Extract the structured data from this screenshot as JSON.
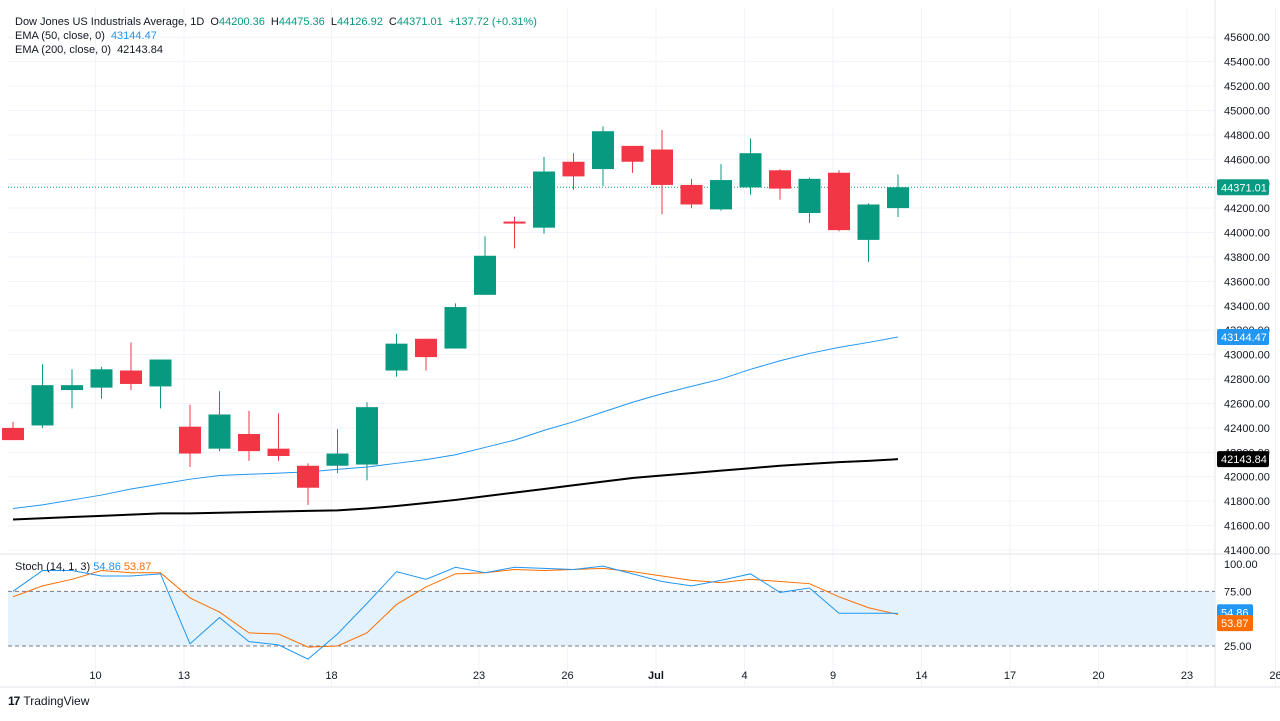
{
  "header": {
    "symbol_title": "Dow Jones US Industrials Average, 1D",
    "open_label": "O",
    "open_value": "44200.36",
    "high_label": "H",
    "high_value": "44475.36",
    "low_label": "L",
    "low_value": "44126.92",
    "close_label": "C",
    "close_value": "44371.01",
    "change_value": "+137.72 (+0.31%)"
  },
  "indicators": {
    "ema50_label": "EMA (50, close, 0)",
    "ema50_value": "43144.47",
    "ema200_label": "EMA (200, close, 0)",
    "ema200_value": "42143.84"
  },
  "stoch": {
    "label": "Stoch (14, 1, 3)",
    "k_value": "54.86",
    "d_value": "53.87",
    "levels": [
      "100.00",
      "75.00",
      "25.00"
    ]
  },
  "footer": {
    "brand": "TradingView",
    "logo": "17"
  },
  "colors": {
    "up": "#089981",
    "down": "#f23645",
    "ema50": "#2196f3",
    "ema200": "#000000",
    "stoch_k": "#2196f3",
    "stoch_d": "#ff6d00",
    "band": "#e3f2fd"
  },
  "chart_data": {
    "type": "candlestick",
    "title": "Dow Jones US Industrials Average, 1D",
    "ylim": [
      41400,
      45700
    ],
    "price_ticks": [
      "45600.00",
      "45400.00",
      "45200.00",
      "45000.00",
      "44800.00",
      "44600.00",
      "44400.00",
      "44200.00",
      "44000.00",
      "43800.00",
      "43600.00",
      "43400.00",
      "43200.00",
      "43000.00",
      "42800.00",
      "42600.00",
      "42400.00",
      "42200.00",
      "42000.00",
      "41800.00",
      "41600.00",
      "41400.00"
    ],
    "x_ticks": [
      {
        "label": "10",
        "day": 10
      },
      {
        "label": "13",
        "day": 13
      },
      {
        "label": "18",
        "day": 18
      },
      {
        "label": "23",
        "day": 23
      },
      {
        "label": "26",
        "day": 26
      },
      {
        "label": "Jul",
        "day": 29
      },
      {
        "label": "4",
        "day": 32
      },
      {
        "label": "9",
        "day": 35
      },
      {
        "label": "14",
        "day": 38
      },
      {
        "label": "17",
        "day": 41
      },
      {
        "label": "20",
        "day": 44
      },
      {
        "label": "23",
        "day": 47
      },
      {
        "label": "26",
        "day": 50
      }
    ],
    "candles": [
      {
        "o": 42400,
        "h": 42450,
        "l": 42300,
        "c": 42300
      },
      {
        "o": 42420,
        "h": 42920,
        "l": 42400,
        "c": 42750
      },
      {
        "o": 42710,
        "h": 42880,
        "l": 42560,
        "c": 42750
      },
      {
        "o": 42730,
        "h": 42900,
        "l": 42640,
        "c": 42880
      },
      {
        "o": 42870,
        "h": 43100,
        "l": 42710,
        "c": 42760
      },
      {
        "o": 42740,
        "h": 42960,
        "l": 42560,
        "c": 42960
      },
      {
        "o": 42410,
        "h": 42590,
        "l": 42080,
        "c": 42190
      },
      {
        "o": 42230,
        "h": 42700,
        "l": 42210,
        "c": 42510
      },
      {
        "o": 42350,
        "h": 42540,
        "l": 42130,
        "c": 42210
      },
      {
        "o": 42230,
        "h": 42520,
        "l": 42130,
        "c": 42170
      },
      {
        "o": 42090,
        "h": 42110,
        "l": 41770,
        "c": 41910
      },
      {
        "o": 42090,
        "h": 42390,
        "l": 42030,
        "c": 42190
      },
      {
        "o": 42100,
        "h": 42610,
        "l": 41970,
        "c": 42570
      },
      {
        "o": 42870,
        "h": 43170,
        "l": 42820,
        "c": 43090
      },
      {
        "o": 43130,
        "h": 43130,
        "l": 42870,
        "c": 42980
      },
      {
        "o": 43050,
        "h": 43420,
        "l": 43050,
        "c": 43390
      },
      {
        "o": 43490,
        "h": 43970,
        "l": 43490,
        "c": 43810
      },
      {
        "o": 44090,
        "h": 44130,
        "l": 43870,
        "c": 44080
      },
      {
        "o": 44040,
        "h": 44620,
        "l": 43990,
        "c": 44500
      },
      {
        "o": 44580,
        "h": 44650,
        "l": 44350,
        "c": 44460
      },
      {
        "o": 44520,
        "h": 44870,
        "l": 44380,
        "c": 44830
      },
      {
        "o": 44710,
        "h": 44710,
        "l": 44490,
        "c": 44580
      },
      {
        "o": 44680,
        "h": 44840,
        "l": 44150,
        "c": 44390
      },
      {
        "o": 44390,
        "h": 44440,
        "l": 44200,
        "c": 44230
      },
      {
        "o": 44190,
        "h": 44560,
        "l": 44180,
        "c": 44430
      },
      {
        "o": 44370,
        "h": 44770,
        "l": 44310,
        "c": 44650
      },
      {
        "o": 44510,
        "h": 44520,
        "l": 44270,
        "c": 44360
      },
      {
        "o": 44160,
        "h": 44450,
        "l": 44080,
        "c": 44440
      },
      {
        "o": 44490,
        "h": 44510,
        "l": 44010,
        "c": 44020
      },
      {
        "o": 43940,
        "h": 44240,
        "l": 43760,
        "c": 44230
      },
      {
        "o": 44200.36,
        "h": 44475.36,
        "l": 44126.92,
        "c": 44371.01
      }
    ],
    "ema50": [
      41740,
      41770,
      41810,
      41850,
      41900,
      41940,
      41980,
      42010,
      42020,
      42030,
      42040,
      42060,
      42080,
      42110,
      42140,
      42180,
      42240,
      42300,
      42380,
      42450,
      42530,
      42610,
      42680,
      42740,
      42800,
      42880,
      42950,
      43010,
      43060,
      43100,
      43144.47
    ],
    "ema200": [
      41650,
      41660,
      41670,
      41680,
      41690,
      41700,
      41700,
      41705,
      41710,
      41715,
      41720,
      41725,
      41740,
      41760,
      41785,
      41810,
      41840,
      41870,
      41900,
      41930,
      41960,
      41990,
      42010,
      42030,
      42050,
      42070,
      42090,
      42105,
      42120,
      42130,
      42143.84
    ],
    "stoch_k": [
      75,
      94,
      94,
      89,
      89,
      91,
      27,
      51,
      29,
      26,
      13,
      36,
      64,
      93,
      86,
      97,
      92,
      97,
      96,
      95,
      98,
      91,
      84,
      80,
      85,
      91,
      74,
      78,
      55,
      55,
      54.86
    ],
    "stoch_d": [
      70,
      80,
      86,
      94,
      92,
      92,
      69,
      56,
      37,
      36,
      24,
      25,
      37,
      63,
      79,
      91,
      92,
      95,
      94,
      95,
      96,
      93,
      89,
      85,
      83,
      86,
      84,
      82,
      70,
      60,
      53.87
    ],
    "stoch_range": [
      0,
      110
    ]
  }
}
